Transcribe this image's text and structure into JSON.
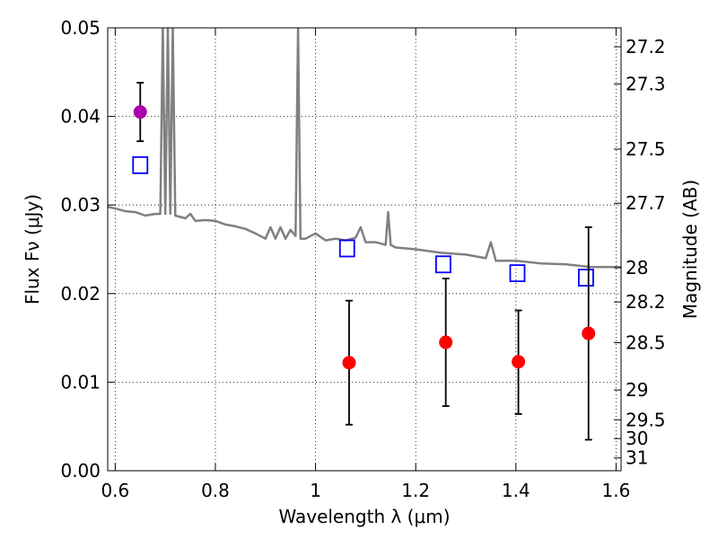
{
  "chart_data": {
    "type": "scatter",
    "title": "",
    "xlabel": "Wavelength λ (μm)",
    "ylabel": "Flux Fν (μJy)",
    "ylabel_right": "Magnitude (AB)",
    "xlim": [
      0.585,
      1.61
    ],
    "ylim": [
      0.0,
      0.05
    ],
    "grid": true,
    "xticks": [
      0.6,
      0.8,
      1.0,
      1.2,
      1.4,
      1.6
    ],
    "xtick_labels": [
      "0.6",
      "0.8",
      "1",
      "1.2",
      "1.4",
      "1.6"
    ],
    "yticks": [
      0.0,
      0.01,
      0.02,
      0.03,
      0.04,
      0.05
    ],
    "ytick_labels": [
      "0.00",
      "0.01",
      "0.02",
      "0.03",
      "0.04",
      "0.05"
    ],
    "right_axis": {
      "ticks": [
        27.2,
        27.3,
        27.5,
        27.7,
        28,
        28.2,
        28.5,
        29,
        29.5,
        30,
        31
      ],
      "labels": [
        "27.2",
        "27.3",
        "27.5",
        "27.7",
        "28",
        "28.2",
        "28.5",
        "29",
        "29.5",
        "30",
        "31"
      ]
    },
    "series": [
      {
        "style": "line",
        "color": "#808080",
        "x": [
          0.585,
          0.6,
          0.62,
          0.64,
          0.66,
          0.68,
          0.69,
          0.695,
          0.7,
          0.705,
          0.71,
          0.715,
          0.72,
          0.74,
          0.75,
          0.76,
          0.78,
          0.8,
          0.82,
          0.84,
          0.86,
          0.88,
          0.9,
          0.91,
          0.92,
          0.93,
          0.94,
          0.95,
          0.96,
          0.965,
          0.97,
          0.98,
          1.0,
          1.02,
          1.04,
          1.06,
          1.08,
          1.09,
          1.1,
          1.12,
          1.14,
          1.145,
          1.15,
          1.16,
          1.2,
          1.25,
          1.3,
          1.34,
          1.35,
          1.36,
          1.4,
          1.45,
          1.5,
          1.55,
          1.61
        ],
        "y": [
          0.0298,
          0.0296,
          0.0293,
          0.0292,
          0.0288,
          0.029,
          0.029,
          0.05,
          0.029,
          0.05,
          0.029,
          0.05,
          0.0288,
          0.0285,
          0.029,
          0.0282,
          0.0283,
          0.0282,
          0.0278,
          0.0276,
          0.0273,
          0.0268,
          0.0262,
          0.0275,
          0.0262,
          0.0275,
          0.0262,
          0.0272,
          0.0265,
          0.05,
          0.0262,
          0.0262,
          0.0268,
          0.026,
          0.0262,
          0.026,
          0.0263,
          0.0275,
          0.0258,
          0.0258,
          0.0255,
          0.0292,
          0.0255,
          0.0252,
          0.025,
          0.0246,
          0.0244,
          0.024,
          0.0258,
          0.0237,
          0.0237,
          0.0234,
          0.0233,
          0.023,
          0.023
        ]
      },
      {
        "style": "open-square",
        "color": "#0000ff",
        "x": [
          0.65,
          1.063,
          1.255,
          1.403,
          1.54
        ],
        "y": [
          0.0345,
          0.0251,
          0.0233,
          0.0223,
          0.0218
        ]
      },
      {
        "style": "filled-circle",
        "color": "#ff0000",
        "x": [
          1.067,
          1.26,
          1.405,
          1.545
        ],
        "y": [
          0.0122,
          0.0145,
          0.0123,
          0.0155
        ],
        "yerr_low": [
          0.007,
          0.0072,
          0.0059,
          0.012
        ],
        "yerr_high": [
          0.007,
          0.0072,
          0.0058,
          0.012
        ]
      },
      {
        "style": "filled-circle",
        "color": "#aa00aa",
        "x": [
          0.65
        ],
        "y": [
          0.0405
        ],
        "yerr_low": [
          0.0033
        ],
        "yerr_high": [
          0.0033
        ]
      }
    ]
  }
}
